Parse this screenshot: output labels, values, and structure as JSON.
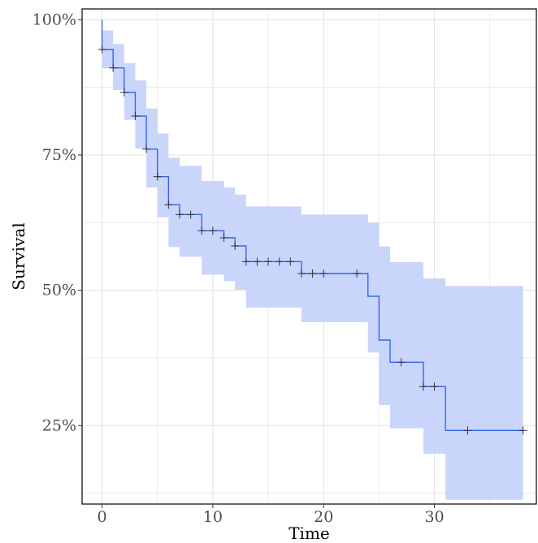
{
  "chart_data": {
    "type": "line",
    "title": "",
    "xlabel": "Time",
    "ylabel": "Survival",
    "xlim": [
      -1.8,
      39.2
    ],
    "ylim": [
      0.105,
      1.02
    ],
    "xticks": [
      0,
      10,
      20,
      30
    ],
    "xtick_labels": [
      "0",
      "10",
      "20",
      "30"
    ],
    "yticks": [
      0.25,
      0.5,
      0.75,
      1.0
    ],
    "ytick_labels": [
      "25%",
      "50%",
      "75%",
      "100%"
    ],
    "grid": true,
    "legend": "none",
    "colors": {
      "line": "#3366ee",
      "band": "#c7d3fb",
      "censor": "#333333",
      "grid": "#e6e6e6",
      "frame": "#000000"
    },
    "series": [
      {
        "steps": [
          {
            "x": 0,
            "y": 1.0,
            "lower": 1.0,
            "upper": 1.0
          },
          {
            "x": 0,
            "y": 0.945,
            "lower": 0.91,
            "upper": 0.98
          },
          {
            "x": 1,
            "y": 0.911,
            "lower": 0.87,
            "upper": 0.955
          },
          {
            "x": 2,
            "y": 0.866,
            "lower": 0.815,
            "upper": 0.92
          },
          {
            "x": 3,
            "y": 0.822,
            "lower": 0.762,
            "upper": 0.888
          },
          {
            "x": 4,
            "y": 0.761,
            "lower": 0.69,
            "upper": 0.836
          },
          {
            "x": 5,
            "y": 0.71,
            "lower": 0.635,
            "upper": 0.79
          },
          {
            "x": 6,
            "y": 0.658,
            "lower": 0.58,
            "upper": 0.745
          },
          {
            "x": 7,
            "y": 0.64,
            "lower": 0.562,
            "upper": 0.73
          },
          {
            "x": 9,
            "y": 0.61,
            "lower": 0.529,
            "upper": 0.702
          },
          {
            "x": 11,
            "y": 0.597,
            "lower": 0.517,
            "upper": 0.69
          },
          {
            "x": 12,
            "y": 0.582,
            "lower": 0.501,
            "upper": 0.677
          },
          {
            "x": 13,
            "y": 0.553,
            "lower": 0.468,
            "upper": 0.655
          },
          {
            "x": 18,
            "y": 0.531,
            "lower": 0.441,
            "upper": 0.64
          },
          {
            "x": 24,
            "y": 0.489,
            "lower": 0.385,
            "upper": 0.625
          },
          {
            "x": 25,
            "y": 0.408,
            "lower": 0.288,
            "upper": 0.581
          },
          {
            "x": 26,
            "y": 0.367,
            "lower": 0.245,
            "upper": 0.552
          },
          {
            "x": 29,
            "y": 0.322,
            "lower": 0.198,
            "upper": 0.522
          },
          {
            "x": 31,
            "y": 0.241,
            "lower": 0.113,
            "upper": 0.508
          }
        ],
        "end_x": 38,
        "censored": [
          {
            "x": 0,
            "y": 0.945
          },
          {
            "x": 1,
            "y": 0.911
          },
          {
            "x": 2,
            "y": 0.866
          },
          {
            "x": 3,
            "y": 0.822
          },
          {
            "x": 4,
            "y": 0.761
          },
          {
            "x": 5,
            "y": 0.71
          },
          {
            "x": 6,
            "y": 0.658
          },
          {
            "x": 7,
            "y": 0.64
          },
          {
            "x": 8,
            "y": 0.64
          },
          {
            "x": 9,
            "y": 0.61
          },
          {
            "x": 10,
            "y": 0.61
          },
          {
            "x": 11,
            "y": 0.597
          },
          {
            "x": 12,
            "y": 0.582
          },
          {
            "x": 13,
            "y": 0.553
          },
          {
            "x": 14,
            "y": 0.553
          },
          {
            "x": 15,
            "y": 0.553
          },
          {
            "x": 16,
            "y": 0.553
          },
          {
            "x": 17,
            "y": 0.553
          },
          {
            "x": 18,
            "y": 0.531
          },
          {
            "x": 19,
            "y": 0.531
          },
          {
            "x": 20,
            "y": 0.531
          },
          {
            "x": 23,
            "y": 0.531
          },
          {
            "x": 27,
            "y": 0.367
          },
          {
            "x": 29,
            "y": 0.322
          },
          {
            "x": 30,
            "y": 0.322
          },
          {
            "x": 33,
            "y": 0.241
          },
          {
            "x": 38,
            "y": 0.241
          }
        ]
      }
    ]
  }
}
